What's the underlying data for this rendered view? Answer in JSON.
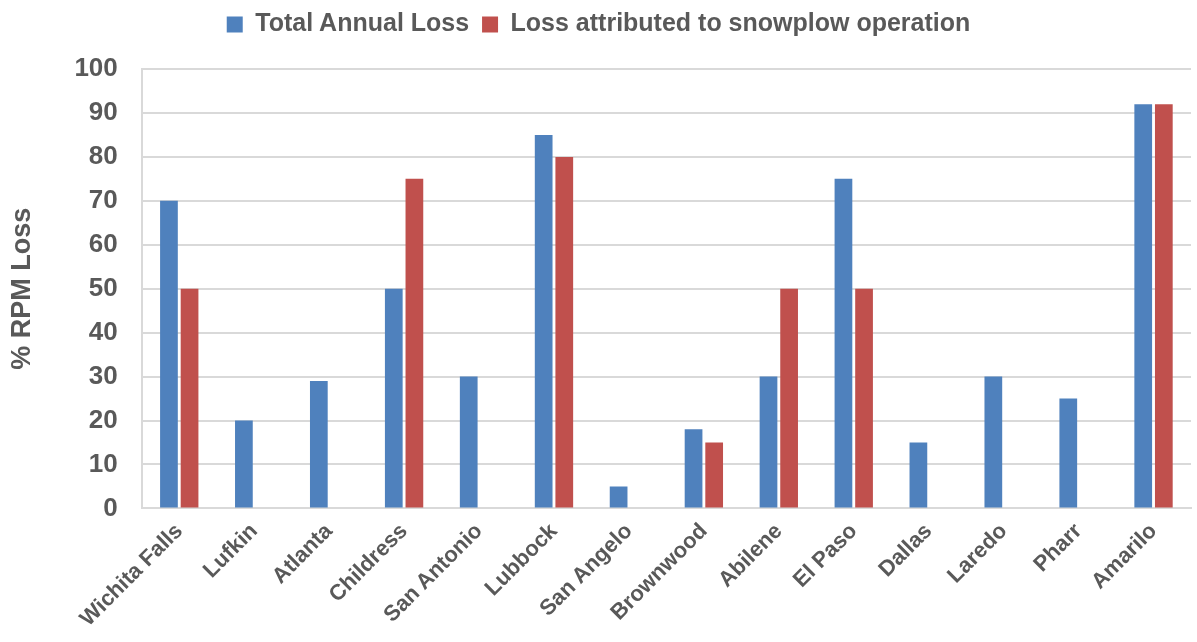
{
  "chart_data": {
    "type": "bar",
    "ylabel": "% RPM Loss",
    "categories": [
      "Wichita Falls",
      "Lufkin",
      "Atlanta",
      "Childress",
      "San Antonio",
      "Lubbock",
      "San Angelo",
      "Brownwood",
      "Abilene",
      "El Paso",
      "Dallas",
      "Laredo",
      "Pharr",
      "Amarilo"
    ],
    "series": [
      {
        "name": "Total Annual Loss",
        "color": "#4f81bd",
        "values": [
          70,
          20,
          29,
          50,
          30,
          85,
          5,
          18,
          30,
          75,
          15,
          30,
          25,
          92
        ]
      },
      {
        "name": "Loss attributed to snowplow operation",
        "color": "#c0504d",
        "values": [
          50,
          null,
          null,
          75,
          null,
          80,
          null,
          15,
          50,
          50,
          null,
          null,
          null,
          92
        ]
      }
    ],
    "ylim": [
      0,
      100
    ],
    "yticks": [
      0,
      10,
      20,
      30,
      40,
      50,
      60,
      70,
      80,
      90,
      100
    ],
    "grid": "y",
    "legend": "top"
  }
}
